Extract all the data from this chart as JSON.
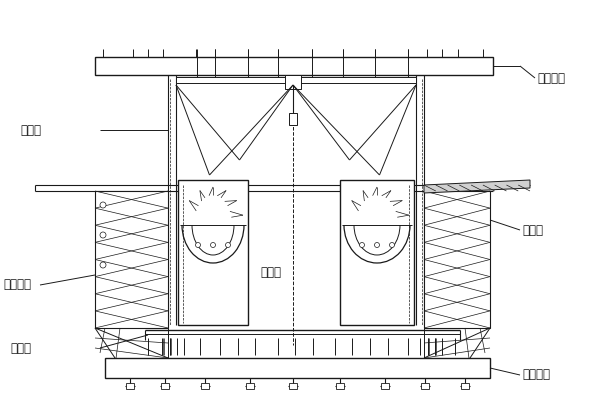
{
  "bg_color": "#ffffff",
  "line_color": "#1a1a1a",
  "labels": {
    "qian_shang": "前上横梁",
    "ling_xing": "菱形架",
    "wai_mo": "外模系统",
    "di_zong": "底纵梁",
    "nei_dao": "内导梁",
    "wai_dao": "外导梁",
    "qian_xia": "前下横梁"
  },
  "font_size": 8.5
}
